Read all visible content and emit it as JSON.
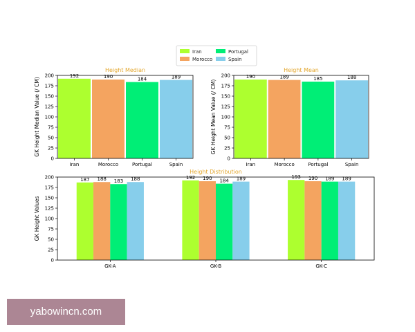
{
  "colors": {
    "Iran": "#adff2f",
    "Morocco": "#f4a460",
    "Portugal": "#00ee76",
    "Spain": "#87ceeb",
    "title": "#e3a72f"
  },
  "legend": {
    "placement": "top-center",
    "entries": [
      "Iran",
      "Morocco",
      "Portugal",
      "Spain"
    ]
  },
  "chart_data": [
    {
      "type": "bar",
      "title": "Height Median",
      "ylabel": "GK Height Median Value (/ CM)",
      "xlabel": "",
      "categories": [
        "Iran",
        "Morocco",
        "Portugal",
        "Spain"
      ],
      "values": [
        192,
        190,
        184,
        189
      ],
      "ylim": [
        0,
        200
      ],
      "yticks": [
        "0",
        "25",
        "50",
        "75",
        "100",
        "125",
        "150",
        "175",
        "200"
      ],
      "grid": false
    },
    {
      "type": "bar",
      "title": "Height Mean",
      "ylabel": "GK Height Mean Value (/ CM)",
      "xlabel": "",
      "categories": [
        "Iran",
        "Morocco",
        "Portugal",
        "Spain"
      ],
      "values": [
        190,
        189,
        185,
        188
      ],
      "ylim": [
        0,
        200
      ],
      "yticks": [
        "0",
        "25",
        "50",
        "75",
        "100",
        "125",
        "150",
        "175",
        "200"
      ],
      "grid": false
    },
    {
      "type": "bar",
      "title": "Height Distribution",
      "ylabel": "GK Height Values",
      "xlabel": "",
      "categories": [
        "GK-A",
        "GK-B",
        "GK-C"
      ],
      "series": [
        {
          "name": "Iran",
          "values": [
            187,
            192,
            193
          ]
        },
        {
          "name": "Morocco",
          "values": [
            188,
            190,
            190
          ]
        },
        {
          "name": "Portugal",
          "values": [
            183,
            184,
            189
          ]
        },
        {
          "name": "Spain",
          "values": [
            188,
            189,
            189
          ]
        }
      ],
      "ylim": [
        0,
        200
      ],
      "yticks": [
        "0",
        "25",
        "50",
        "75",
        "100",
        "125",
        "150",
        "175",
        "200"
      ],
      "grid": false
    }
  ],
  "watermark": {
    "text": "yabowincn.com"
  }
}
